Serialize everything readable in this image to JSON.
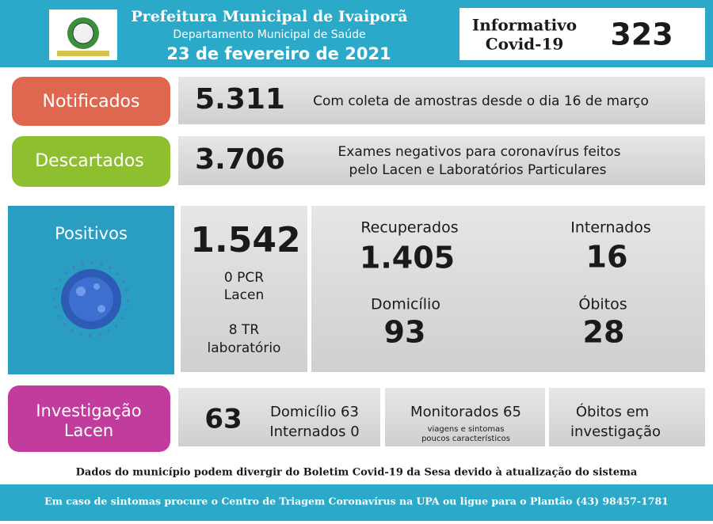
{
  "header": {
    "title": "Prefeitura Municipal de Ivaiporã",
    "subtitle": "Departamento Municipal de Saúde",
    "date": "23 de fevereiro de 2021",
    "bulletin": [
      "Informativo",
      "Covid-19"
    ],
    "number": "323"
  },
  "notificados": {
    "label": "Notificados",
    "value": "5.311",
    "description": [
      "Com coleta de amostras desde o dia 16 de março"
    ]
  },
  "descartados": {
    "label": "Descartados",
    "value": "3.706",
    "description": [
      "Exames negativos para coronavírus feitos",
      "pelo Lacen e Laboratórios Particulares"
    ]
  },
  "positivos": {
    "label": "Positivos",
    "value": "1.542",
    "details": [
      "0 PCR",
      "Lacen",
      "8 TR",
      "laboratório"
    ],
    "recuperados": {
      "label": "Recuperados",
      "value": "1.405"
    },
    "internados": {
      "label": "Internados",
      "value": "16"
    },
    "domicilio": {
      "label": "Domicílio",
      "value": "93"
    },
    "obitos": {
      "label": "Óbitos",
      "value": "28"
    }
  },
  "investigacao": {
    "label": [
      "Investigação",
      "Lacen"
    ],
    "value": "63",
    "split": [
      "Domicílio 63",
      "Internados 0"
    ],
    "monitorados": {
      "label": "Monitorados 65",
      "note": [
        "viagens e sintomas",
        "poucos característicos"
      ]
    },
    "obitos": [
      "Óbitos em",
      "investigação"
    ]
  },
  "footnote": "Dados do município podem divergir do Boletim Covid-19 da Sesa devido à atualização do sistema",
  "footer": "Em caso de sintomas procure o Centro de Triagem Coronavírus na UPA ou ligue para o Plantão (43) 98457-1781"
}
